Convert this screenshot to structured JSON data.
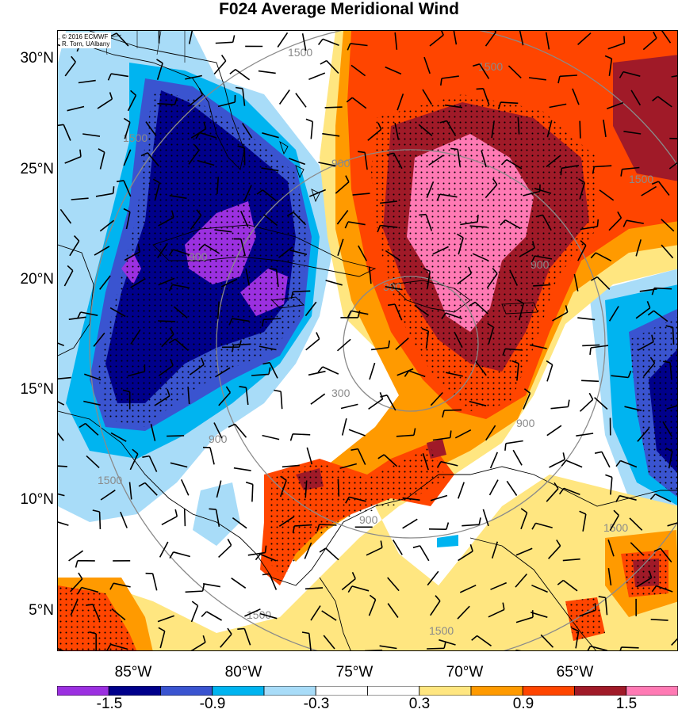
{
  "title": "F024 Average Meridional Wind",
  "copyright": [
    "© 2016 ECMWF",
    "R. Torn, UAlbany"
  ],
  "latitude_labels": [
    "30°N",
    "25°N",
    "20°N",
    "15°N",
    "10°N",
    "5°N"
  ],
  "longitude_labels": [
    "85°W",
    "80°W",
    "75°W",
    "70°W",
    "65°W"
  ],
  "colorbar": {
    "colors": [
      "#9b30e0",
      "#00008b",
      "#3a54d0",
      "#00b4f0",
      "#a8dcf8",
      "#ffffff",
      "#ffffff",
      "#ffe680",
      "#ff9a00",
      "#ff4500",
      "#a01a28",
      "#ff7ab4"
    ],
    "tick_labels": [
      "-1.5",
      "-0.9",
      "-0.3",
      "0.3",
      "0.9",
      "1.5"
    ]
  },
  "range_rings": [
    {
      "label": "300"
    },
    {
      "label": "900"
    },
    {
      "label": "1500"
    }
  ],
  "map_legend": {
    "stippling": "dotted",
    "overlays": [
      "wind barbs",
      "range rings",
      "coastlines"
    ]
  }
}
